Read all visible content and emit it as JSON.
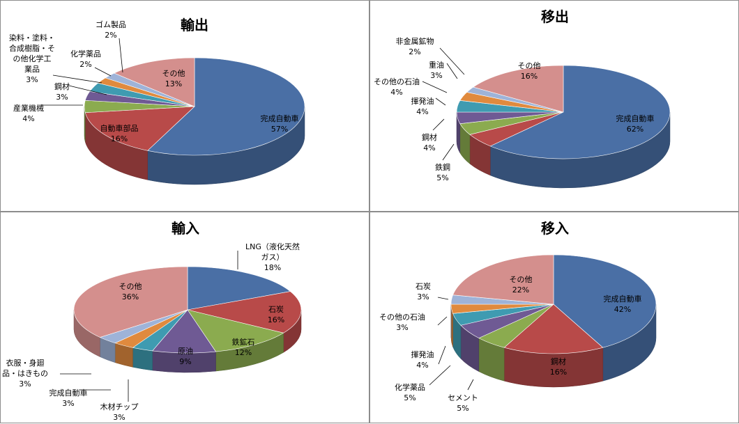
{
  "colors": [
    "#4a6fa5",
    "#b84a49",
    "#8bab4f",
    "#6f5a94",
    "#3f9bb1",
    "#e08a3e",
    "#9eb3d8",
    "#d48f8d"
  ],
  "chart_data": [
    {
      "type": "pie",
      "title": "輸出",
      "slices": [
        {
          "label": [
            "完成自動車"
          ],
          "pct": "57%",
          "value": 57,
          "color": "#4a6fa5"
        },
        {
          "label": [
            "自動車部品"
          ],
          "pct": "16%",
          "value": 16,
          "color": "#b84a49"
        },
        {
          "label": [
            "産業機械"
          ],
          "pct": "4%",
          "value": 4,
          "color": "#8bab4f"
        },
        {
          "label": [
            "鋼材"
          ],
          "pct": "3%",
          "value": 3,
          "color": "#6f5a94"
        },
        {
          "label": [
            "染料・塗料・",
            "合成樹脂・そ",
            "の他化学工",
            "業品"
          ],
          "pct": "3%",
          "value": 3,
          "color": "#3f9bb1"
        },
        {
          "label": [
            "化学薬品"
          ],
          "pct": "2%",
          "value": 2,
          "color": "#e08a3e"
        },
        {
          "label": [
            "ゴム製品"
          ],
          "pct": "2%",
          "value": 2,
          "color": "#9eb3d8"
        },
        {
          "label": [
            "その他"
          ],
          "pct": "13%",
          "value": 13,
          "color": "#d48f8d"
        }
      ]
    },
    {
      "type": "pie",
      "title": "移出",
      "slices": [
        {
          "label": [
            "完成自動車"
          ],
          "pct": "62%",
          "value": 62,
          "color": "#4a6fa5"
        },
        {
          "label": [
            "鉄鋼"
          ],
          "pct": "5%",
          "value": 5,
          "color": "#b84a49"
        },
        {
          "label": [
            "鋼材"
          ],
          "pct": "4%",
          "value": 4,
          "color": "#8bab4f"
        },
        {
          "label": [
            "揮発油"
          ],
          "pct": "4%",
          "value": 4,
          "color": "#6f5a94"
        },
        {
          "label": [
            "その他の石油"
          ],
          "pct": "4%",
          "value": 4,
          "color": "#3f9bb1"
        },
        {
          "label": [
            "重油"
          ],
          "pct": "3%",
          "value": 3,
          "color": "#e08a3e"
        },
        {
          "label": [
            "非金属鉱物"
          ],
          "pct": "2%",
          "value": 2,
          "color": "#9eb3d8"
        },
        {
          "label": [
            "その他"
          ],
          "pct": "16%",
          "value": 16,
          "color": "#d48f8d"
        }
      ]
    },
    {
      "type": "pie",
      "title": "輸入",
      "slices": [
        {
          "label": [
            "LNG（液化天然",
            "ガス）"
          ],
          "pct": "18%",
          "value": 18,
          "color": "#4a6fa5"
        },
        {
          "label": [
            "石炭"
          ],
          "pct": "16%",
          "value": 16,
          "color": "#b84a49"
        },
        {
          "label": [
            "鉄鉱石"
          ],
          "pct": "12%",
          "value": 12,
          "color": "#8bab4f"
        },
        {
          "label": [
            "原油"
          ],
          "pct": "9%",
          "value": 9,
          "color": "#6f5a94"
        },
        {
          "label": [
            "木材チップ"
          ],
          "pct": "3%",
          "value": 3,
          "color": "#3f9bb1"
        },
        {
          "label": [
            "完成自動車"
          ],
          "pct": "3%",
          "value": 3,
          "color": "#e08a3e"
        },
        {
          "label": [
            "衣服・身廻",
            "品・はきもの"
          ],
          "pct": "3%",
          "value": 3,
          "color": "#9eb3d8"
        },
        {
          "label": [
            "その他"
          ],
          "pct": "36%",
          "value": 36,
          "color": "#d48f8d"
        }
      ]
    },
    {
      "type": "pie",
      "title": "移入",
      "slices": [
        {
          "label": [
            "完成自動車"
          ],
          "pct": "42%",
          "value": 42,
          "color": "#4a6fa5"
        },
        {
          "label": [
            "鋼材"
          ],
          "pct": "16%",
          "value": 16,
          "color": "#b84a49"
        },
        {
          "label": [
            "セメント"
          ],
          "pct": "5%",
          "value": 5,
          "color": "#8bab4f"
        },
        {
          "label": [
            "化学薬品"
          ],
          "pct": "5%",
          "value": 5,
          "color": "#6f5a94"
        },
        {
          "label": [
            "揮発油"
          ],
          "pct": "4%",
          "value": 4,
          "color": "#3f9bb1"
        },
        {
          "label": [
            "その他の石油"
          ],
          "pct": "3%",
          "value": 3,
          "color": "#e08a3e"
        },
        {
          "label": [
            "石炭"
          ],
          "pct": "3%",
          "value": 3,
          "color": "#9eb3d8"
        },
        {
          "label": [
            "その他"
          ],
          "pct": "22%",
          "value": 22,
          "color": "#d48f8d"
        }
      ]
    }
  ]
}
